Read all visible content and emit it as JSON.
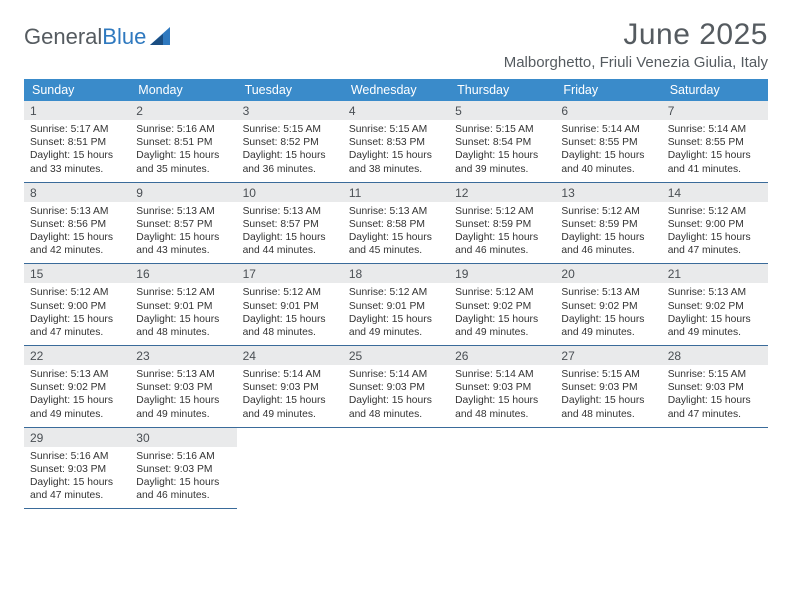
{
  "logo": {
    "text1": "General",
    "text2": "Blue"
  },
  "title": "June 2025",
  "location": "Malborghetto, Friuli Venezia Giulia, Italy",
  "colors": {
    "header_bg": "#3a8bca",
    "header_text": "#ffffff",
    "daynum_bg": "#e9eaeb",
    "border": "#3a6b9a",
    "title_color": "#555b60",
    "logo_blue": "#2f79bf"
  },
  "weekdays": [
    "Sunday",
    "Monday",
    "Tuesday",
    "Wednesday",
    "Thursday",
    "Friday",
    "Saturday"
  ],
  "weeks": [
    [
      {
        "n": "1",
        "sr": "Sunrise: 5:17 AM",
        "ss": "Sunset: 8:51 PM",
        "d1": "Daylight: 15 hours",
        "d2": "and 33 minutes."
      },
      {
        "n": "2",
        "sr": "Sunrise: 5:16 AM",
        "ss": "Sunset: 8:51 PM",
        "d1": "Daylight: 15 hours",
        "d2": "and 35 minutes."
      },
      {
        "n": "3",
        "sr": "Sunrise: 5:15 AM",
        "ss": "Sunset: 8:52 PM",
        "d1": "Daylight: 15 hours",
        "d2": "and 36 minutes."
      },
      {
        "n": "4",
        "sr": "Sunrise: 5:15 AM",
        "ss": "Sunset: 8:53 PM",
        "d1": "Daylight: 15 hours",
        "d2": "and 38 minutes."
      },
      {
        "n": "5",
        "sr": "Sunrise: 5:15 AM",
        "ss": "Sunset: 8:54 PM",
        "d1": "Daylight: 15 hours",
        "d2": "and 39 minutes."
      },
      {
        "n": "6",
        "sr": "Sunrise: 5:14 AM",
        "ss": "Sunset: 8:55 PM",
        "d1": "Daylight: 15 hours",
        "d2": "and 40 minutes."
      },
      {
        "n": "7",
        "sr": "Sunrise: 5:14 AM",
        "ss": "Sunset: 8:55 PM",
        "d1": "Daylight: 15 hours",
        "d2": "and 41 minutes."
      }
    ],
    [
      {
        "n": "8",
        "sr": "Sunrise: 5:13 AM",
        "ss": "Sunset: 8:56 PM",
        "d1": "Daylight: 15 hours",
        "d2": "and 42 minutes."
      },
      {
        "n": "9",
        "sr": "Sunrise: 5:13 AM",
        "ss": "Sunset: 8:57 PM",
        "d1": "Daylight: 15 hours",
        "d2": "and 43 minutes."
      },
      {
        "n": "10",
        "sr": "Sunrise: 5:13 AM",
        "ss": "Sunset: 8:57 PM",
        "d1": "Daylight: 15 hours",
        "d2": "and 44 minutes."
      },
      {
        "n": "11",
        "sr": "Sunrise: 5:13 AM",
        "ss": "Sunset: 8:58 PM",
        "d1": "Daylight: 15 hours",
        "d2": "and 45 minutes."
      },
      {
        "n": "12",
        "sr": "Sunrise: 5:12 AM",
        "ss": "Sunset: 8:59 PM",
        "d1": "Daylight: 15 hours",
        "d2": "and 46 minutes."
      },
      {
        "n": "13",
        "sr": "Sunrise: 5:12 AM",
        "ss": "Sunset: 8:59 PM",
        "d1": "Daylight: 15 hours",
        "d2": "and 46 minutes."
      },
      {
        "n": "14",
        "sr": "Sunrise: 5:12 AM",
        "ss": "Sunset: 9:00 PM",
        "d1": "Daylight: 15 hours",
        "d2": "and 47 minutes."
      }
    ],
    [
      {
        "n": "15",
        "sr": "Sunrise: 5:12 AM",
        "ss": "Sunset: 9:00 PM",
        "d1": "Daylight: 15 hours",
        "d2": "and 47 minutes."
      },
      {
        "n": "16",
        "sr": "Sunrise: 5:12 AM",
        "ss": "Sunset: 9:01 PM",
        "d1": "Daylight: 15 hours",
        "d2": "and 48 minutes."
      },
      {
        "n": "17",
        "sr": "Sunrise: 5:12 AM",
        "ss": "Sunset: 9:01 PM",
        "d1": "Daylight: 15 hours",
        "d2": "and 48 minutes."
      },
      {
        "n": "18",
        "sr": "Sunrise: 5:12 AM",
        "ss": "Sunset: 9:01 PM",
        "d1": "Daylight: 15 hours",
        "d2": "and 49 minutes."
      },
      {
        "n": "19",
        "sr": "Sunrise: 5:12 AM",
        "ss": "Sunset: 9:02 PM",
        "d1": "Daylight: 15 hours",
        "d2": "and 49 minutes."
      },
      {
        "n": "20",
        "sr": "Sunrise: 5:13 AM",
        "ss": "Sunset: 9:02 PM",
        "d1": "Daylight: 15 hours",
        "d2": "and 49 minutes."
      },
      {
        "n": "21",
        "sr": "Sunrise: 5:13 AM",
        "ss": "Sunset: 9:02 PM",
        "d1": "Daylight: 15 hours",
        "d2": "and 49 minutes."
      }
    ],
    [
      {
        "n": "22",
        "sr": "Sunrise: 5:13 AM",
        "ss": "Sunset: 9:02 PM",
        "d1": "Daylight: 15 hours",
        "d2": "and 49 minutes."
      },
      {
        "n": "23",
        "sr": "Sunrise: 5:13 AM",
        "ss": "Sunset: 9:03 PM",
        "d1": "Daylight: 15 hours",
        "d2": "and 49 minutes."
      },
      {
        "n": "24",
        "sr": "Sunrise: 5:14 AM",
        "ss": "Sunset: 9:03 PM",
        "d1": "Daylight: 15 hours",
        "d2": "and 49 minutes."
      },
      {
        "n": "25",
        "sr": "Sunrise: 5:14 AM",
        "ss": "Sunset: 9:03 PM",
        "d1": "Daylight: 15 hours",
        "d2": "and 48 minutes."
      },
      {
        "n": "26",
        "sr": "Sunrise: 5:14 AM",
        "ss": "Sunset: 9:03 PM",
        "d1": "Daylight: 15 hours",
        "d2": "and 48 minutes."
      },
      {
        "n": "27",
        "sr": "Sunrise: 5:15 AM",
        "ss": "Sunset: 9:03 PM",
        "d1": "Daylight: 15 hours",
        "d2": "and 48 minutes."
      },
      {
        "n": "28",
        "sr": "Sunrise: 5:15 AM",
        "ss": "Sunset: 9:03 PM",
        "d1": "Daylight: 15 hours",
        "d2": "and 47 minutes."
      }
    ],
    [
      {
        "n": "29",
        "sr": "Sunrise: 5:16 AM",
        "ss": "Sunset: 9:03 PM",
        "d1": "Daylight: 15 hours",
        "d2": "and 47 minutes."
      },
      {
        "n": "30",
        "sr": "Sunrise: 5:16 AM",
        "ss": "Sunset: 9:03 PM",
        "d1": "Daylight: 15 hours",
        "d2": "and 46 minutes."
      },
      {
        "empty": true
      },
      {
        "empty": true
      },
      {
        "empty": true
      },
      {
        "empty": true
      },
      {
        "empty": true
      }
    ]
  ]
}
